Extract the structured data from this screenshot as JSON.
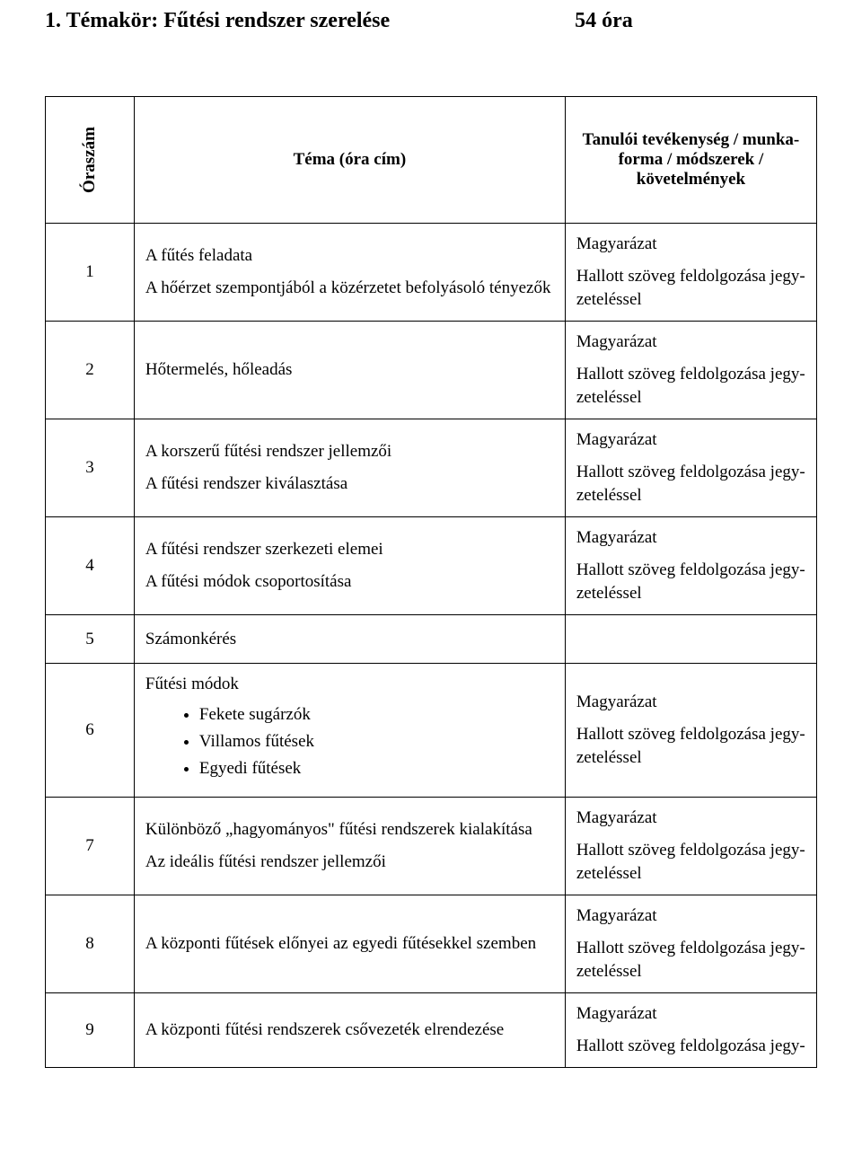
{
  "title": {
    "left": "1. Témakör: Fűtési rendszer szerelése",
    "right": "54 óra"
  },
  "headers": {
    "oraszam": "Óraszám",
    "tema": "Téma (óra cím)",
    "tanuloi": "Tanulói tevékenység / munka-forma / módszerek / követelmények"
  },
  "common": {
    "magyarazat": "Magyarázat",
    "hallott_full": "Hallott szöveg feldolgozása jegyzeteléssel",
    "hallott_line1": "Hallott szöveg feldolgozása jegy-",
    "hallott_line2": "zeteléssel",
    "hallott_partial": "Hallott szöveg feldolgozása jegy-"
  },
  "rows": [
    {
      "num": "1",
      "tema_lines": [
        "A fűtés feladata",
        "A hőérzet szempontjából a közérzetet befolyásoló tényezők"
      ]
    },
    {
      "num": "2",
      "tema_lines": [
        "Hőtermelés, hőleadás"
      ]
    },
    {
      "num": "3",
      "tema_lines": [
        "A korszerű fűtési rendszer jellemzői",
        "A fűtési rendszer kiválasztása"
      ]
    },
    {
      "num": "4",
      "tema_lines": [
        "A fűtési rendszer szerkezeti elemei",
        "A fűtési módok csoportosítása"
      ]
    },
    {
      "num": "5",
      "tema_lines": [
        "Számonkérés"
      ],
      "no_right": true
    },
    {
      "num": "6",
      "tema_heading": "Fűtési módok",
      "bullets": [
        "Fekete sugárzók",
        "Villamos fűtések",
        "Egyedi fűtések"
      ]
    },
    {
      "num": "7",
      "tema_lines": [
        "Különböző „hagyományos\" fűtési rendszerek kialakítása",
        "Az ideális fűtési rendszer jellemzői"
      ]
    },
    {
      "num": "8",
      "tema_lines": [
        "A központi fűtések előnyei az egyedi fűtésekkel szemben"
      ]
    },
    {
      "num": "9",
      "tema_lines": [
        "A központi fűtési rendszerek csővezeték elrendezése"
      ],
      "partial": true
    }
  ],
  "colors": {
    "text": "#000000",
    "background": "#ffffff",
    "border": "#000000"
  },
  "fonts": {
    "family": "Times New Roman",
    "title_size_pt": 18,
    "body_size_pt": 14
  }
}
